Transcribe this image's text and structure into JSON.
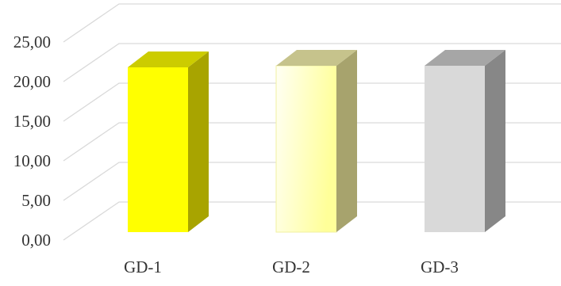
{
  "chart_data": {
    "type": "bar",
    "style": "3d-column",
    "categories": [
      "GD-1",
      "GD-2",
      "GD-3"
    ],
    "values": [
      20.8,
      21.0,
      21.0
    ],
    "ylim": [
      0,
      25
    ],
    "y_ticks": [
      "0,00",
      "5,00",
      "10,00",
      "15,00",
      "20,00",
      "25,00"
    ],
    "title": "",
    "xlabel": "",
    "ylabel": "",
    "grid": true,
    "legend": "none",
    "bar_colors": [
      {
        "front": "#ffff00",
        "side": "#a8a400",
        "top": "#cccc00"
      },
      {
        "front_from": "#fffff4",
        "front_to": "#ffff99",
        "side": "#a7a36d",
        "top": "#c6c38c"
      },
      {
        "front": "#d9d9d9",
        "side": "#878787",
        "top": "#a6a6a6"
      }
    ]
  }
}
